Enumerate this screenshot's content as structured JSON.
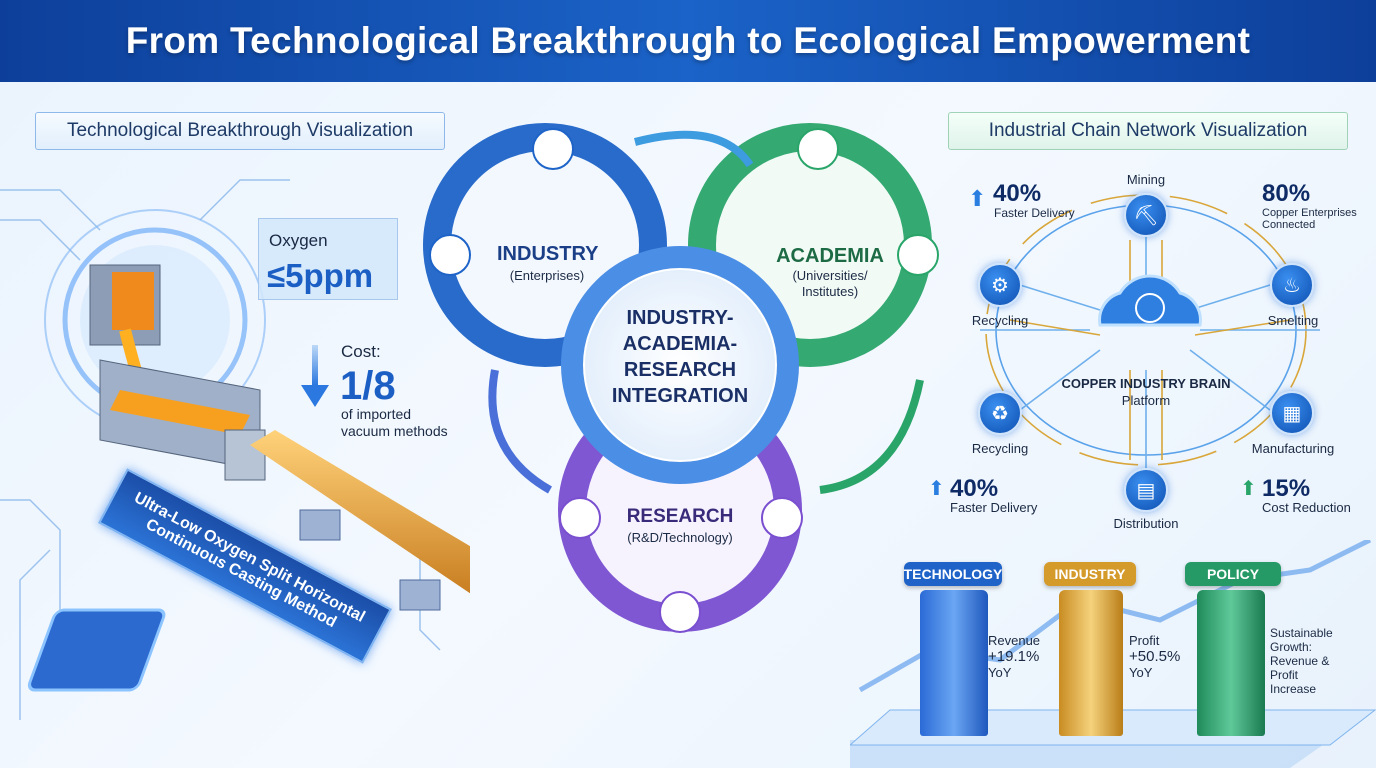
{
  "title": "From Technological Breakthrough to Ecological Empowerment",
  "left": {
    "panel_title": "Technological Breakthrough Visualization",
    "oxygen_label": "Oxygen",
    "oxygen_value": "≤5ppm",
    "cost_label": "Cost:",
    "cost_value": "1/8",
    "cost_note_1": "of imported",
    "cost_note_2": "vacuum methods",
    "banner_line_1": "Ultra-Low Oxygen Split Horizontal",
    "banner_line_2": "Continuous Casting Method"
  },
  "center": {
    "industry": {
      "title": "INDUSTRY",
      "sub": "(Enterprises)"
    },
    "academia": {
      "title": "ACADEMIA",
      "sub_1": "(Universities/",
      "sub_2": "Institutes)"
    },
    "research": {
      "title": "RESEARCH",
      "sub": "(R&D/Technology)"
    },
    "core_lines": [
      "INDUSTRY-",
      "ACADEMIA-",
      "RESEARCH",
      "INTEGRATION"
    ],
    "colors": {
      "industry": "#1e64c8",
      "academia": "#2aa56a",
      "research": "#7a4fd0"
    }
  },
  "right": {
    "panel_title": "Industrial Chain Network Visualization",
    "platform_1": "COPPER INDUSTRY BRAIN",
    "platform_2": "Platform",
    "nodes": [
      {
        "label": "Mining",
        "icon": "mining-icon"
      },
      {
        "label": "Recycling",
        "icon": "recycling-machine-icon"
      },
      {
        "label": "Smelting",
        "icon": "smelting-icon"
      },
      {
        "label": "Recycling",
        "icon": "recycle-icon"
      },
      {
        "label": "Manufacturing",
        "icon": "factory-icon"
      },
      {
        "label": "Distribution",
        "icon": "distribution-icon"
      }
    ],
    "stats": [
      {
        "value": "40%",
        "label": "Faster Delivery"
      },
      {
        "value": "80%",
        "label_1": "Copper Enterprises",
        "label_2": "Connected"
      },
      {
        "value": "40%",
        "label": "Faster Delivery"
      },
      {
        "value": "15%",
        "label": "Cost Reduction"
      }
    ]
  },
  "pillars": [
    {
      "label": "TECHNOLOGY",
      "color": "#1f63c9",
      "lines": [
        "Revenue",
        "+19.1%",
        "YoY"
      ]
    },
    {
      "label": "INDUSTRY",
      "color": "#d49a2a",
      "lines": [
        "Profit",
        "+50.5%",
        "YoY"
      ]
    },
    {
      "label": "POLICY",
      "color": "#259a66",
      "lines": [
        "Sustainable",
        "Growth:",
        "Revenue &",
        "Profit",
        "Increase"
      ]
    }
  ]
}
